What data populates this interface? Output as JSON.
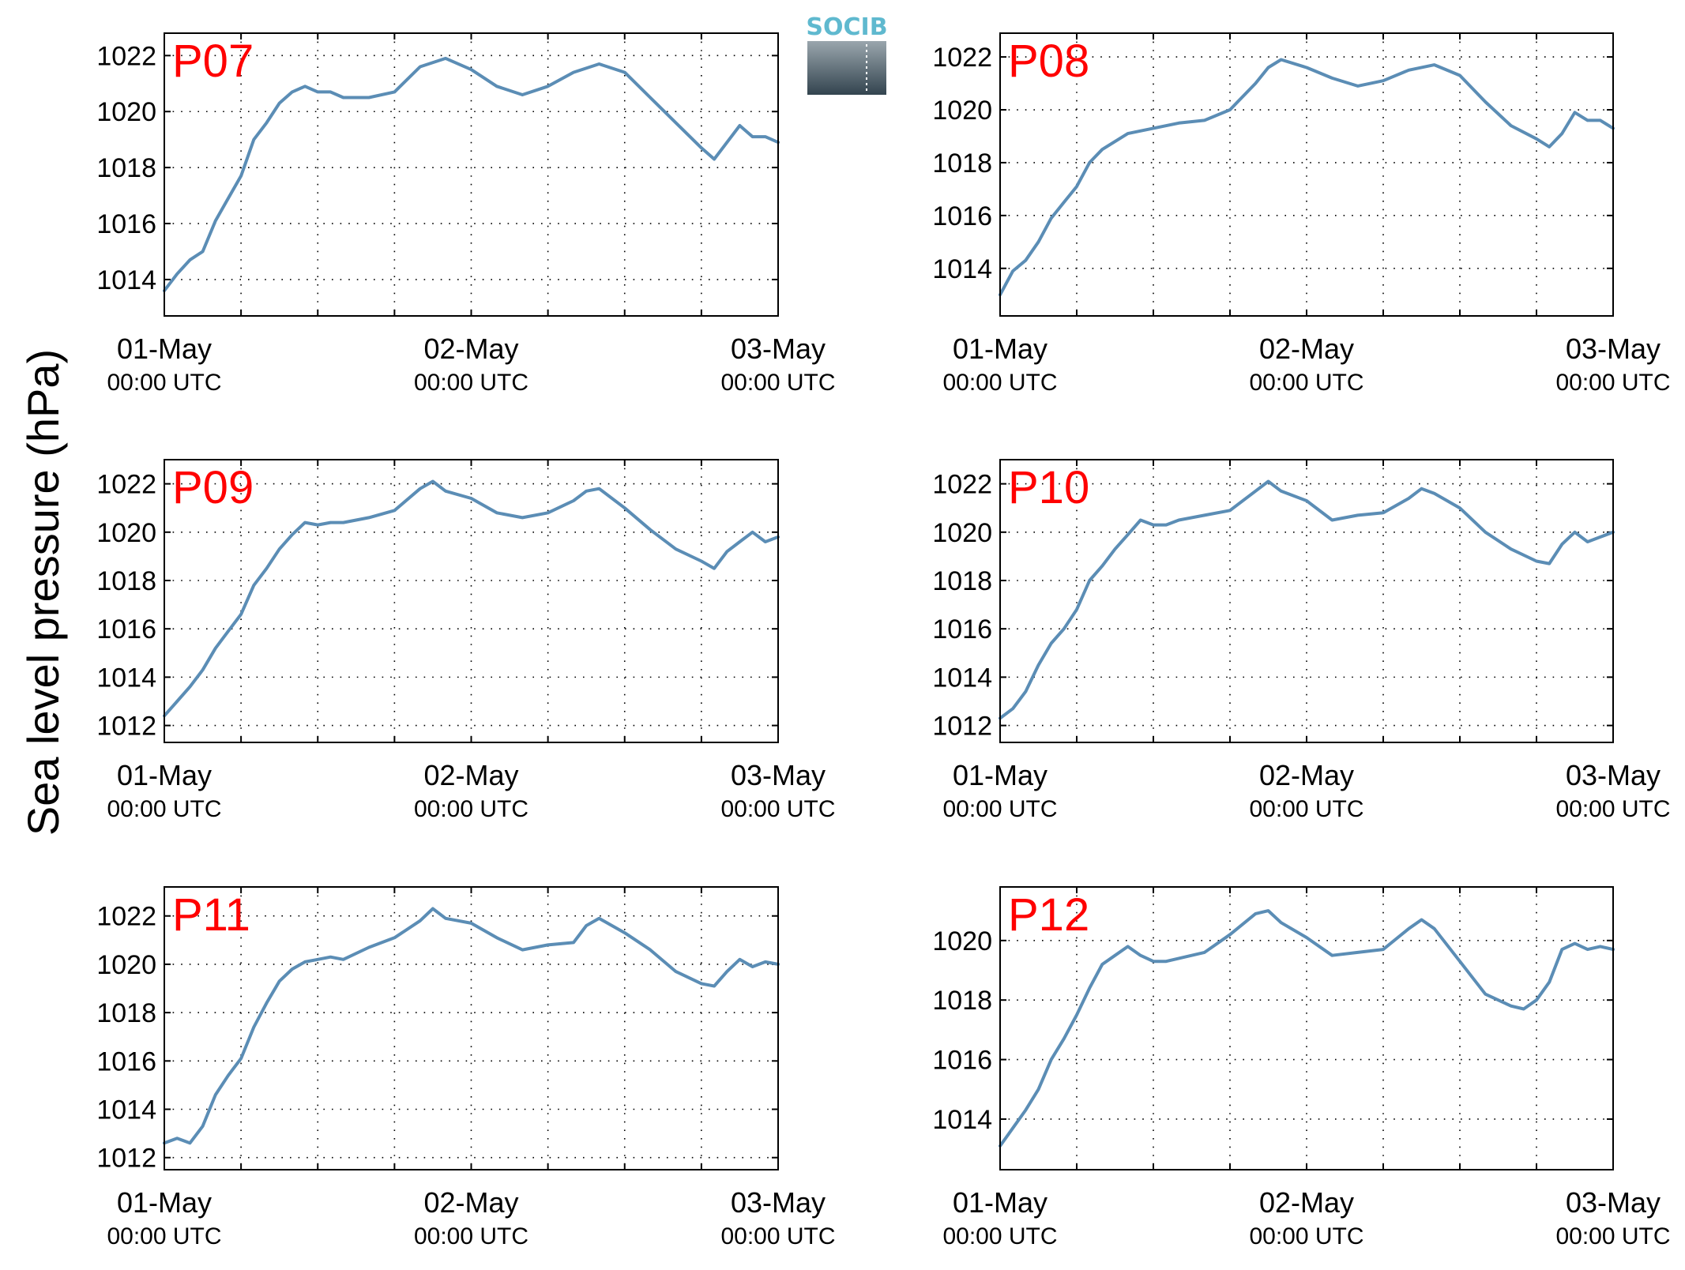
{
  "figure": {
    "ylabel": "Sea level pressure (hPa)",
    "logo_text": "SOCIB",
    "line_color": "#5b8db5",
    "label_color": "#ff0000"
  },
  "chart_data": [
    {
      "type": "line",
      "title": "P07",
      "x_ticks": [
        {
          "line1": "01-May",
          "line2": "00:00 UTC"
        },
        {
          "line1": "02-May",
          "line2": "00:00 UTC"
        },
        {
          "line1": "03-May",
          "line2": "00:00 UTC"
        }
      ],
      "xlim_hours": [
        0,
        48
      ],
      "ylim": [
        1012.7,
        1022.8
      ],
      "yticks": [
        1014,
        1016,
        1018,
        1020,
        1022
      ],
      "grid": true,
      "series": [
        {
          "x_hours": [
            0,
            1,
            2,
            3,
            4,
            5,
            6,
            7,
            8,
            9,
            10,
            11,
            12,
            13,
            14,
            15,
            16,
            18,
            20,
            22,
            24,
            26,
            28,
            30,
            32,
            34,
            36,
            38,
            40,
            42,
            43,
            44,
            45,
            46,
            47,
            48
          ],
          "values": [
            1013.6,
            1014.2,
            1014.7,
            1015.0,
            1016.1,
            1016.9,
            1017.7,
            1019.0,
            1019.6,
            1020.3,
            1020.7,
            1020.9,
            1020.7,
            1020.7,
            1020.5,
            1020.5,
            1020.5,
            1020.7,
            1021.6,
            1021.9,
            1021.5,
            1020.9,
            1020.6,
            1020.9,
            1021.4,
            1021.7,
            1021.4,
            1020.5,
            1019.6,
            1018.7,
            1018.3,
            1018.9,
            1019.5,
            1019.1,
            1019.1,
            1018.9
          ]
        }
      ]
    },
    {
      "type": "line",
      "title": "P08",
      "x_ticks": [
        {
          "line1": "01-May",
          "line2": "00:00 UTC"
        },
        {
          "line1": "02-May",
          "line2": "00:00 UTC"
        },
        {
          "line1": "03-May",
          "line2": "00:00 UTC"
        }
      ],
      "xlim_hours": [
        0,
        48
      ],
      "ylim": [
        1012.2,
        1022.9
      ],
      "yticks": [
        1014,
        1016,
        1018,
        1020,
        1022
      ],
      "grid": true,
      "series": [
        {
          "x_hours": [
            0,
            1,
            2,
            3,
            4,
            5,
            6,
            7,
            8,
            10,
            12,
            14,
            16,
            18,
            20,
            21,
            22,
            24,
            26,
            28,
            30,
            32,
            34,
            36,
            38,
            40,
            42,
            43,
            44,
            45,
            46,
            47,
            48
          ],
          "values": [
            1013.0,
            1013.9,
            1014.3,
            1015.0,
            1015.9,
            1016.5,
            1017.1,
            1018.0,
            1018.5,
            1019.1,
            1019.3,
            1019.5,
            1019.6,
            1020.0,
            1021.0,
            1021.6,
            1021.9,
            1021.6,
            1021.2,
            1020.9,
            1021.1,
            1021.5,
            1021.7,
            1021.3,
            1020.3,
            1019.4,
            1018.9,
            1018.6,
            1019.1,
            1019.9,
            1019.6,
            1019.6,
            1019.3
          ]
        }
      ]
    },
    {
      "type": "line",
      "title": "P09",
      "x_ticks": [
        {
          "line1": "01-May",
          "line2": "00:00 UTC"
        },
        {
          "line1": "02-May",
          "line2": "00:00 UTC"
        },
        {
          "line1": "03-May",
          "line2": "00:00 UTC"
        }
      ],
      "xlim_hours": [
        0,
        48
      ],
      "ylim": [
        1011.3,
        1023.0
      ],
      "yticks": [
        1012,
        1014,
        1016,
        1018,
        1020,
        1022
      ],
      "grid": true,
      "series": [
        {
          "x_hours": [
            0,
            1,
            2,
            3,
            4,
            5,
            6,
            7,
            8,
            9,
            10,
            11,
            12,
            13,
            14,
            16,
            18,
            20,
            21,
            22,
            24,
            26,
            28,
            30,
            32,
            33,
            34,
            36,
            38,
            40,
            42,
            43,
            44,
            45,
            46,
            47,
            48
          ],
          "values": [
            1012.4,
            1013.0,
            1013.6,
            1014.3,
            1015.2,
            1015.9,
            1016.6,
            1017.8,
            1018.5,
            1019.3,
            1019.9,
            1020.4,
            1020.3,
            1020.4,
            1020.4,
            1020.6,
            1020.9,
            1021.8,
            1022.1,
            1021.7,
            1021.4,
            1020.8,
            1020.6,
            1020.8,
            1021.3,
            1021.7,
            1021.8,
            1021.0,
            1020.1,
            1019.3,
            1018.8,
            1018.5,
            1019.2,
            1019.6,
            1020.0,
            1019.6,
            1019.8
          ]
        }
      ]
    },
    {
      "type": "line",
      "title": "P10",
      "x_ticks": [
        {
          "line1": "01-May",
          "line2": "00:00 UTC"
        },
        {
          "line1": "02-May",
          "line2": "00:00 UTC"
        },
        {
          "line1": "03-May",
          "line2": "00:00 UTC"
        }
      ],
      "xlim_hours": [
        0,
        48
      ],
      "ylim": [
        1011.3,
        1023.0
      ],
      "yticks": [
        1012,
        1014,
        1016,
        1018,
        1020,
        1022
      ],
      "grid": true,
      "series": [
        {
          "x_hours": [
            0,
            1,
            2,
            3,
            4,
            5,
            6,
            7,
            8,
            9,
            10,
            11,
            12,
            13,
            14,
            16,
            18,
            20,
            21,
            22,
            24,
            26,
            28,
            30,
            32,
            33,
            34,
            36,
            38,
            40,
            42,
            43,
            44,
            45,
            46,
            47,
            48
          ],
          "values": [
            1012.3,
            1012.7,
            1013.4,
            1014.5,
            1015.4,
            1016.0,
            1016.8,
            1018.0,
            1018.6,
            1019.3,
            1019.9,
            1020.5,
            1020.3,
            1020.3,
            1020.5,
            1020.7,
            1020.9,
            1021.7,
            1022.1,
            1021.7,
            1021.3,
            1020.5,
            1020.7,
            1020.8,
            1021.4,
            1021.8,
            1021.6,
            1021.0,
            1020.0,
            1019.3,
            1018.8,
            1018.7,
            1019.5,
            1020.0,
            1019.6,
            1019.8,
            1020.0
          ]
        }
      ]
    },
    {
      "type": "line",
      "title": "P11",
      "x_ticks": [
        {
          "line1": "01-May",
          "line2": "00:00 UTC"
        },
        {
          "line1": "02-May",
          "line2": "00:00 UTC"
        },
        {
          "line1": "03-May",
          "line2": "00:00 UTC"
        }
      ],
      "xlim_hours": [
        0,
        48
      ],
      "ylim": [
        1011.5,
        1023.2
      ],
      "yticks": [
        1012,
        1014,
        1016,
        1018,
        1020,
        1022
      ],
      "grid": true,
      "series": [
        {
          "x_hours": [
            0,
            1,
            2,
            3,
            4,
            5,
            6,
            7,
            8,
            9,
            10,
            11,
            12,
            13,
            14,
            16,
            18,
            20,
            21,
            22,
            24,
            26,
            28,
            30,
            32,
            33,
            34,
            36,
            38,
            40,
            42,
            43,
            44,
            45,
            46,
            47,
            48
          ],
          "values": [
            1012.6,
            1012.8,
            1012.6,
            1013.3,
            1014.6,
            1015.4,
            1016.1,
            1017.4,
            1018.4,
            1019.3,
            1019.8,
            1020.1,
            1020.2,
            1020.3,
            1020.2,
            1020.7,
            1021.1,
            1021.8,
            1022.3,
            1021.9,
            1021.7,
            1021.1,
            1020.6,
            1020.8,
            1020.9,
            1021.6,
            1021.9,
            1021.3,
            1020.6,
            1019.7,
            1019.2,
            1019.1,
            1019.7,
            1020.2,
            1019.9,
            1020.1,
            1020.0
          ]
        }
      ]
    },
    {
      "type": "line",
      "title": "P12",
      "x_ticks": [
        {
          "line1": "01-May",
          "line2": "00:00 UTC"
        },
        {
          "line1": "02-May",
          "line2": "00:00 UTC"
        },
        {
          "line1": "03-May",
          "line2": "00:00 UTC"
        }
      ],
      "xlim_hours": [
        0,
        48
      ],
      "ylim": [
        1012.3,
        1021.8
      ],
      "yticks": [
        1014,
        1016,
        1018,
        1020
      ],
      "grid": true,
      "series": [
        {
          "x_hours": [
            0,
            1,
            2,
            3,
            4,
            5,
            6,
            7,
            8,
            9,
            10,
            11,
            12,
            13,
            14,
            16,
            18,
            20,
            21,
            22,
            24,
            26,
            28,
            30,
            32,
            33,
            34,
            36,
            38,
            40,
            41,
            42,
            43,
            44,
            45,
            46,
            47,
            48
          ],
          "values": [
            1013.1,
            1013.7,
            1014.3,
            1015.0,
            1016.0,
            1016.7,
            1017.5,
            1018.4,
            1019.2,
            1019.5,
            1019.8,
            1019.5,
            1019.3,
            1019.3,
            1019.4,
            1019.6,
            1020.2,
            1020.9,
            1021.0,
            1020.6,
            1020.1,
            1019.5,
            1019.6,
            1019.7,
            1020.4,
            1020.7,
            1020.4,
            1019.3,
            1018.2,
            1017.8,
            1017.7,
            1018.0,
            1018.6,
            1019.7,
            1019.9,
            1019.7,
            1019.8,
            1019.7
          ]
        }
      ]
    }
  ]
}
